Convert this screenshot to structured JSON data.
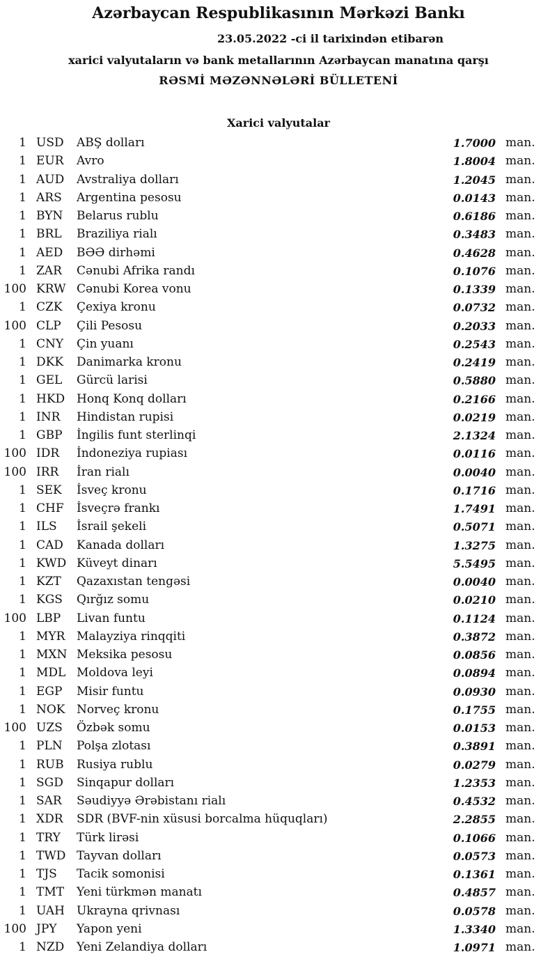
{
  "header": {
    "title": "Azərbaycan Respublikasının Mərkəzi Bankı",
    "date_line": "23.05.2022 -ci il tarixindən etibarən",
    "subtitle": "xarici valyutaların və bank metallarının Azərbaycan manatına qarşı",
    "bulletin": "RƏSMİ MƏZƏNNƏLƏRİ BÜLLETENİ"
  },
  "section_title": "Xarici valyutalar",
  "unit_label": "man.",
  "rates": [
    {
      "qty": "1",
      "code": "USD",
      "name": "ABŞ dolları",
      "rate": "1.7000"
    },
    {
      "qty": "1",
      "code": "EUR",
      "name": "Avro",
      "rate": "1.8004"
    },
    {
      "qty": "1",
      "code": "AUD",
      "name": "Avstraliya dolları",
      "rate": "1.2045"
    },
    {
      "qty": "1",
      "code": "ARS",
      "name": "Argentina pesosu",
      "rate": "0.0143"
    },
    {
      "qty": "1",
      "code": "BYN",
      "name": "Belarus rublu",
      "rate": "0.6186"
    },
    {
      "qty": "1",
      "code": "BRL",
      "name": "Braziliya rialı",
      "rate": "0.3483"
    },
    {
      "qty": "1",
      "code": "AED",
      "name": "BƏƏ dirhəmi",
      "rate": "0.4628"
    },
    {
      "qty": "1",
      "code": "ZAR",
      "name": "Cənubi Afrika randı",
      "rate": "0.1076"
    },
    {
      "qty": "100",
      "code": "KRW",
      "name": "Cənubi Korea vonu",
      "rate": "0.1339"
    },
    {
      "qty": "1",
      "code": "CZK",
      "name": "Çexiya kronu",
      "rate": "0.0732"
    },
    {
      "qty": "100",
      "code": "CLP",
      "name": "Çili Pesosu",
      "rate": "0.2033"
    },
    {
      "qty": "1",
      "code": "CNY",
      "name": "Çin yuanı",
      "rate": "0.2543"
    },
    {
      "qty": "1",
      "code": "DKK",
      "name": "Danimarka kronu",
      "rate": "0.2419"
    },
    {
      "qty": "1",
      "code": "GEL",
      "name": "Gürcü larisi",
      "rate": "0.5880"
    },
    {
      "qty": "1",
      "code": "HKD",
      "name": "Honq Konq dolları",
      "rate": "0.2166"
    },
    {
      "qty": "1",
      "code": "INR",
      "name": "Hindistan rupisi",
      "rate": "0.0219"
    },
    {
      "qty": "1",
      "code": "GBP",
      "name": "İngilis funt sterlinqi",
      "rate": "2.1324"
    },
    {
      "qty": "100",
      "code": "IDR",
      "name": "İndoneziya rupiası",
      "rate": "0.0116"
    },
    {
      "qty": "100",
      "code": "IRR",
      "name": "İran rialı",
      "rate": "0.0040"
    },
    {
      "qty": "1",
      "code": "SEK",
      "name": "İsveç kronu",
      "rate": "0.1716"
    },
    {
      "qty": "1",
      "code": "CHF",
      "name": "İsveçrə frankı",
      "rate": "1.7491"
    },
    {
      "qty": "1",
      "code": "ILS",
      "name": "İsrail şekeli",
      "rate": "0.5071"
    },
    {
      "qty": "1",
      "code": "CAD",
      "name": "Kanada dolları",
      "rate": "1.3275"
    },
    {
      "qty": "1",
      "code": "KWD",
      "name": "Küveyt dinarı",
      "rate": "5.5495"
    },
    {
      "qty": "1",
      "code": "KZT",
      "name": "Qazaxıstan tengəsi",
      "rate": "0.0040"
    },
    {
      "qty": "1",
      "code": "KGS",
      "name": "Qırğız somu",
      "rate": "0.0210"
    },
    {
      "qty": "100",
      "code": "LBP",
      "name": "Livan funtu",
      "rate": "0.1124"
    },
    {
      "qty": "1",
      "code": "MYR",
      "name": "Malayziya rinqqiti",
      "rate": "0.3872"
    },
    {
      "qty": "1",
      "code": "MXN",
      "name": "Meksika pesosu",
      "rate": "0.0856"
    },
    {
      "qty": "1",
      "code": "MDL",
      "name": "Moldova leyi",
      "rate": "0.0894"
    },
    {
      "qty": "1",
      "code": "EGP",
      "name": "Misir funtu",
      "rate": "0.0930"
    },
    {
      "qty": "1",
      "code": "NOK",
      "name": "Norveç kronu",
      "rate": "0.1755"
    },
    {
      "qty": "100",
      "code": "UZS",
      "name": "Özbək somu",
      "rate": "0.0153"
    },
    {
      "qty": "1",
      "code": "PLN",
      "name": "Polşa zlotası",
      "rate": "0.3891"
    },
    {
      "qty": "1",
      "code": "RUB",
      "name": "Rusiya rublu",
      "rate": "0.0279"
    },
    {
      "qty": "1",
      "code": "SGD",
      "name": "Sinqapur dolları",
      "rate": "1.2353"
    },
    {
      "qty": "1",
      "code": "SAR",
      "name": "Səudiyyə Ərəbistanı rialı",
      "rate": "0.4532"
    },
    {
      "qty": "1",
      "code": "XDR",
      "name": "SDR (BVF-nin xüsusi borcalma hüquqları)",
      "rate": "2.2855"
    },
    {
      "qty": "1",
      "code": "TRY",
      "name": "Türk lirəsi",
      "rate": "0.1066"
    },
    {
      "qty": "1",
      "code": "TWD",
      "name": "Tayvan dolları",
      "rate": "0.0573"
    },
    {
      "qty": "1",
      "code": "TJS",
      "name": "Tacik somonisi",
      "rate": "0.1361"
    },
    {
      "qty": "1",
      "code": "TMT",
      "name": "Yeni türkmən manatı",
      "rate": "0.4857"
    },
    {
      "qty": "1",
      "code": "UAH",
      "name": "Ukrayna qrivnası",
      "rate": "0.0578"
    },
    {
      "qty": "100",
      "code": "JPY",
      "name": "Yapon yeni",
      "rate": "1.3340"
    },
    {
      "qty": "1",
      "code": "NZD",
      "name": "Yeni Zelandiya dolları",
      "rate": "1.0971"
    }
  ]
}
